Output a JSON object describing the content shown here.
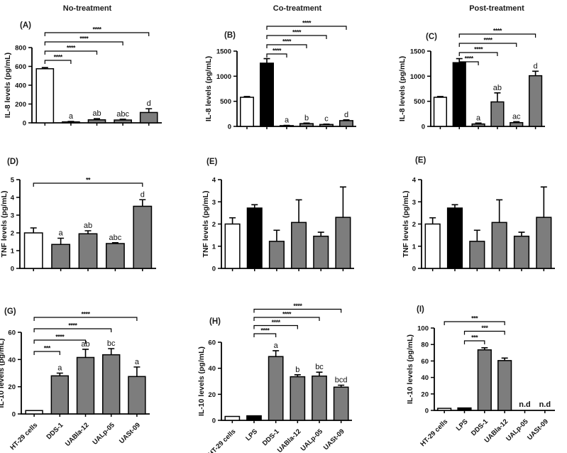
{
  "figure": {
    "column_headers": [
      "No-treatment",
      "Co-treatment",
      "Post-treatment"
    ]
  },
  "chart_data": [
    {
      "panel": "(A)",
      "type": "bar",
      "treatment": "No-treatment",
      "ylabel": "IL-8 levels (pg/mL)",
      "ylim": [
        0,
        800
      ],
      "yticks": [
        0,
        200,
        400,
        600,
        800
      ],
      "show_xlabels": false,
      "bars": [
        {
          "category": "HT-29 cells",
          "value": 575,
          "err": 12,
          "fill": "white",
          "letter": ""
        },
        {
          "category": "DDS-1",
          "value": 10,
          "err": 5,
          "fill": "gray",
          "letter": "a"
        },
        {
          "category": "UABla-12",
          "value": 32,
          "err": 12,
          "fill": "gray",
          "letter": "ab"
        },
        {
          "category": "UALp-05",
          "value": 30,
          "err": 8,
          "fill": "gray",
          "letter": "abc"
        },
        {
          "category": "UASt-09",
          "value": 110,
          "err": 40,
          "fill": "gray",
          "letter": "d"
        }
      ],
      "brackets": [
        {
          "from": 0,
          "to": 1,
          "stars": "****"
        },
        {
          "from": 0,
          "to": 2,
          "stars": "****"
        },
        {
          "from": 0,
          "to": 3,
          "stars": "****"
        },
        {
          "from": 0,
          "to": 4,
          "stars": "****"
        }
      ]
    },
    {
      "panel": "(B)",
      "type": "bar",
      "treatment": "Co-treatment",
      "ylabel": "IL-8 levels (pg/mL)",
      "ylim": [
        0,
        1500
      ],
      "yticks": [
        0,
        500,
        1000,
        1500
      ],
      "show_xlabels": false,
      "bars": [
        {
          "category": "HT-29 cells",
          "value": 580,
          "err": 15,
          "fill": "white",
          "letter": ""
        },
        {
          "category": "LPS",
          "value": 1260,
          "err": 90,
          "fill": "black",
          "letter": ""
        },
        {
          "category": "DDS-1",
          "value": 15,
          "err": 6,
          "fill": "gray",
          "letter": "a"
        },
        {
          "category": "UABla-12",
          "value": 55,
          "err": 12,
          "fill": "gray",
          "letter": "b"
        },
        {
          "category": "UALp-05",
          "value": 38,
          "err": 8,
          "fill": "gray",
          "letter": "c"
        },
        {
          "category": "UASt-09",
          "value": 115,
          "err": 15,
          "fill": "gray",
          "letter": "d"
        }
      ],
      "brackets": [
        {
          "from": 1,
          "to": 2,
          "stars": "****"
        },
        {
          "from": 1,
          "to": 3,
          "stars": "****"
        },
        {
          "from": 1,
          "to": 4,
          "stars": "****"
        },
        {
          "from": 1,
          "to": 5,
          "stars": "****"
        }
      ]
    },
    {
      "panel": "(C)",
      "type": "bar",
      "treatment": "Post-treatment",
      "ylabel": "IL-8 levels (pg/mL)",
      "ylim": [
        0,
        1500
      ],
      "yticks": [
        0,
        500,
        1000,
        1500
      ],
      "show_xlabels": false,
      "bars": [
        {
          "category": "HT-29 cells",
          "value": 580,
          "err": 15,
          "fill": "white",
          "letter": ""
        },
        {
          "category": "LPS",
          "value": 1270,
          "err": 80,
          "fill": "black",
          "letter": ""
        },
        {
          "category": "DDS-1",
          "value": 48,
          "err": 18,
          "fill": "gray",
          "letter": "a"
        },
        {
          "category": "UABla-12",
          "value": 488,
          "err": 180,
          "fill": "gray",
          "letter": "ab"
        },
        {
          "category": "UALp-05",
          "value": 75,
          "err": 18,
          "fill": "gray",
          "letter": "ac"
        },
        {
          "category": "UASt-09",
          "value": 1010,
          "err": 90,
          "fill": "gray",
          "letter": "d"
        }
      ],
      "brackets": [
        {
          "from": 1,
          "to": 2,
          "stars": "****"
        },
        {
          "from": 1,
          "to": 3,
          "stars": "****"
        },
        {
          "from": 1,
          "to": 4,
          "stars": "****"
        },
        {
          "from": 1,
          "to": 5,
          "stars": "****"
        }
      ]
    },
    {
      "panel": "(D)",
      "type": "bar",
      "treatment": "No-treatment",
      "ylabel": "TNF levels (pg/mL)",
      "ylim": [
        0,
        5
      ],
      "yticks": [
        0,
        1,
        2,
        3,
        4,
        5
      ],
      "show_xlabels": false,
      "bars": [
        {
          "category": "HT-29 cells",
          "value": 2.0,
          "err": 0.28,
          "fill": "white",
          "letter": ""
        },
        {
          "category": "DDS-1",
          "value": 1.35,
          "err": 0.35,
          "fill": "gray",
          "letter": "a"
        },
        {
          "category": "UABla-12",
          "value": 1.95,
          "err": 0.17,
          "fill": "gray",
          "letter": "ab"
        },
        {
          "category": "UALp-05",
          "value": 1.4,
          "err": 0.05,
          "fill": "gray",
          "letter": "abc"
        },
        {
          "category": "UASt-09",
          "value": 3.5,
          "err": 0.37,
          "fill": "gray",
          "letter": "d"
        }
      ],
      "brackets": [
        {
          "from": 0,
          "to": 4,
          "stars": "**"
        }
      ]
    },
    {
      "panel": "(E)",
      "type": "bar",
      "treatment": "Co-treatment",
      "ylabel": "TNF levels (pg/mL)",
      "ylim": [
        0,
        4
      ],
      "yticks": [
        0,
        1,
        2,
        3,
        4
      ],
      "show_xlabels": false,
      "bars": [
        {
          "category": "HT-29 cells",
          "value": 2.0,
          "err": 0.28,
          "fill": "white",
          "letter": ""
        },
        {
          "category": "LPS",
          "value": 2.72,
          "err": 0.15,
          "fill": "black",
          "letter": ""
        },
        {
          "category": "DDS-1",
          "value": 1.22,
          "err": 0.5,
          "fill": "gray",
          "letter": ""
        },
        {
          "category": "UABla-12",
          "value": 2.07,
          "err": 1.02,
          "fill": "gray",
          "letter": ""
        },
        {
          "category": "UALp-05",
          "value": 1.45,
          "err": 0.18,
          "fill": "gray",
          "letter": ""
        },
        {
          "category": "UASt-09",
          "value": 2.3,
          "err": 1.37,
          "fill": "gray",
          "letter": ""
        }
      ],
      "brackets": []
    },
    {
      "panel": "(E)",
      "type": "bar",
      "treatment": "Post-treatment",
      "ylabel": "TNF levels (pg/mL)",
      "ylim": [
        0,
        4
      ],
      "yticks": [
        0,
        1,
        2,
        3,
        4
      ],
      "show_xlabels": false,
      "bars": [
        {
          "category": "HT-29 cells",
          "value": 2.0,
          "err": 0.28,
          "fill": "white",
          "letter": ""
        },
        {
          "category": "LPS",
          "value": 2.72,
          "err": 0.15,
          "fill": "black",
          "letter": ""
        },
        {
          "category": "DDS-1",
          "value": 1.22,
          "err": 0.5,
          "fill": "gray",
          "letter": ""
        },
        {
          "category": "UABla-12",
          "value": 2.07,
          "err": 1.02,
          "fill": "gray",
          "letter": ""
        },
        {
          "category": "UALp-05",
          "value": 1.45,
          "err": 0.18,
          "fill": "gray",
          "letter": ""
        },
        {
          "category": "UASt-09",
          "value": 2.3,
          "err": 1.37,
          "fill": "gray",
          "letter": ""
        }
      ],
      "brackets": []
    },
    {
      "panel": "(G)",
      "type": "bar",
      "treatment": "No-treatment",
      "ylabel": "IL-10 levels (pg/mL)",
      "ylim": [
        0,
        60
      ],
      "yticks": [
        0,
        20,
        40,
        60
      ],
      "show_xlabels": true,
      "bars": [
        {
          "category": "HT-29 cells",
          "value": 2.5,
          "err": 0,
          "fill": "white",
          "letter": ""
        },
        {
          "category": "DDS-1",
          "value": 28,
          "err": 2,
          "fill": "gray",
          "letter": "a"
        },
        {
          "category": "UABla-12",
          "value": 41.5,
          "err": 6,
          "fill": "gray",
          "letter": "ab"
        },
        {
          "category": "UALp-05",
          "value": 43.5,
          "err": 4.5,
          "fill": "gray",
          "letter": "bc"
        },
        {
          "category": "UASt-09",
          "value": 27.5,
          "err": 7,
          "fill": "gray",
          "letter": "a"
        }
      ],
      "brackets": [
        {
          "from": 0,
          "to": 1,
          "stars": "***"
        },
        {
          "from": 0,
          "to": 2,
          "stars": "****"
        },
        {
          "from": 0,
          "to": 3,
          "stars": "****"
        },
        {
          "from": 0,
          "to": 4,
          "stars": "****"
        }
      ]
    },
    {
      "panel": "(H)",
      "type": "bar",
      "treatment": "Co-treatment",
      "ylabel": "IL-10 levels (pg/mL)",
      "ylim": [
        0,
        60
      ],
      "yticks": [
        0,
        20,
        40,
        60
      ],
      "show_xlabels": true,
      "bars": [
        {
          "category": "HT-29 cells",
          "value": 3,
          "err": 0,
          "fill": "white",
          "letter": ""
        },
        {
          "category": "LPS",
          "value": 3.5,
          "err": 0,
          "fill": "black",
          "letter": ""
        },
        {
          "category": "DDS-1",
          "value": 49,
          "err": 4.5,
          "fill": "gray",
          "letter": "a"
        },
        {
          "category": "UABla-12",
          "value": 33.5,
          "err": 1.5,
          "fill": "gray",
          "letter": "b"
        },
        {
          "category": "UALp-05",
          "value": 34,
          "err": 3,
          "fill": "gray",
          "letter": "bc"
        },
        {
          "category": "UASt-09",
          "value": 25.5,
          "err": 1.5,
          "fill": "gray",
          "letter": "bcd"
        }
      ],
      "brackets": [
        {
          "from": 1,
          "to": 2,
          "stars": "****"
        },
        {
          "from": 1,
          "to": 3,
          "stars": "****"
        },
        {
          "from": 1,
          "to": 4,
          "stars": "****"
        },
        {
          "from": 1,
          "to": 5,
          "stars": "****"
        }
      ]
    },
    {
      "panel": "(I)",
      "type": "bar",
      "treatment": "Post-treatment",
      "ylabel": "IL-10 levels (pg/mL)",
      "ylim": [
        0,
        100
      ],
      "yticks": [
        0,
        20,
        40,
        60,
        80,
        100
      ],
      "show_xlabels": true,
      "bars": [
        {
          "category": "HT-29 cells",
          "value": 2.5,
          "err": 0,
          "fill": "white",
          "letter": ""
        },
        {
          "category": "LPS",
          "value": 3,
          "err": 0,
          "fill": "black",
          "letter": ""
        },
        {
          "category": "DDS-1",
          "value": 73.5,
          "err": 2.5,
          "fill": "gray",
          "letter": ""
        },
        {
          "category": "UABla-12",
          "value": 60.5,
          "err": 3,
          "fill": "gray",
          "letter": ""
        },
        {
          "category": "UALp-05",
          "value": null,
          "err": null,
          "fill": "none",
          "letter": "",
          "nd": "n.d"
        },
        {
          "category": "UASt-09",
          "value": null,
          "err": null,
          "fill": "none",
          "letter": "",
          "nd": "n.d"
        }
      ],
      "brackets": [
        {
          "from": 1,
          "to": 2,
          "stars": "***"
        },
        {
          "from": 1,
          "to": 3,
          "stars": "***"
        },
        {
          "from": 0,
          "to": 3,
          "stars": "***"
        }
      ]
    }
  ]
}
